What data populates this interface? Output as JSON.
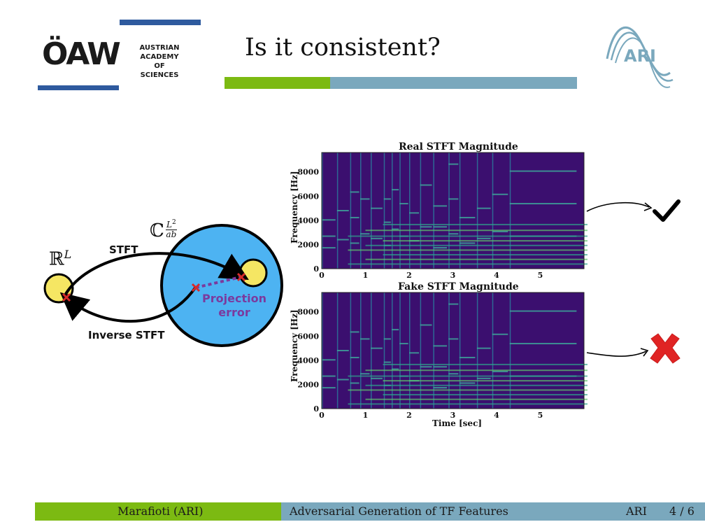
{
  "header": {
    "logo_letters": "ÖAW",
    "logo_subtitle_lines": [
      "AUSTRIAN",
      "ACADEMY OF",
      "SCIENCES"
    ],
    "title": "Is it consistent?",
    "ari_logo_text": "ARI"
  },
  "diagram": {
    "real_space_label": "ℝ",
    "real_space_exp": "L",
    "complex_space_label": "ℂ",
    "complex_exp_num": "L",
    "complex_exp_num_sup": "2",
    "complex_exp_den": "ab",
    "stft_label": "STFT",
    "inverse_stft_label": "Inverse STFT",
    "projection_line1": "Projection",
    "projection_line2": "error"
  },
  "spectrograms": {
    "real_title": "Real STFT Magnitude",
    "fake_title": "Fake STFT Magnitude",
    "y_label": "Frequency [Hz]",
    "x_label": "Time [sec]",
    "y_ticks": [
      "0",
      "2000",
      "4000",
      "6000",
      "8000"
    ],
    "x_ticks": [
      "0",
      "1",
      "2",
      "3",
      "4",
      "5"
    ]
  },
  "verdicts": {
    "real": "check-mark",
    "fake": "cross-mark"
  },
  "footer": {
    "author": "Marafioti  (ARI)",
    "talk_title": "Adversarial Generation of TF Features",
    "institute": "ARI",
    "page": "4 / 6"
  },
  "colors": {
    "green": "#7cba12",
    "blue_gray": "#7aa8bd",
    "oaw_blue": "#2e5a9e",
    "circle_blue": "#4db3f2",
    "yellow": "#f5e663",
    "spectrogram_bg": "#3b0f6f"
  }
}
